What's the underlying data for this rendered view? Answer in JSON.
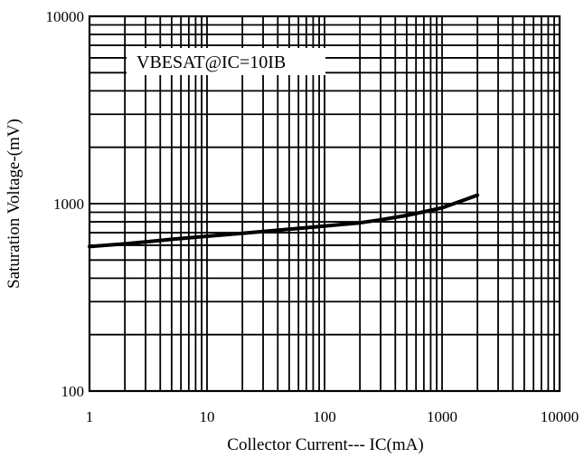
{
  "chart_data": {
    "type": "line",
    "xlabel": "Collector Current--- IC(mA)",
    "ylabel": "Saturation Voltage-(mV)",
    "x_scale": "log",
    "y_scale": "log",
    "xlim": [
      1,
      10000
    ],
    "ylim": [
      100,
      10000
    ],
    "x_ticks": [
      "1",
      "10",
      "100",
      "1000",
      "10000"
    ],
    "y_ticks": [
      "100",
      "1000",
      "10000"
    ],
    "grid": true,
    "annotation": "VBESAT@IC=10IB",
    "series": [
      {
        "x": [
          1,
          2,
          3,
          5,
          10,
          20,
          50,
          100,
          200,
          300,
          500,
          700,
          1000,
          1500,
          2000
        ],
        "y": [
          590,
          610,
          625,
          645,
          670,
          695,
          730,
          760,
          790,
          820,
          865,
          905,
          950,
          1040,
          1110
        ]
      }
    ],
    "colors": {
      "grid": "#000000",
      "line": "#000000",
      "background": "#ffffff"
    }
  }
}
